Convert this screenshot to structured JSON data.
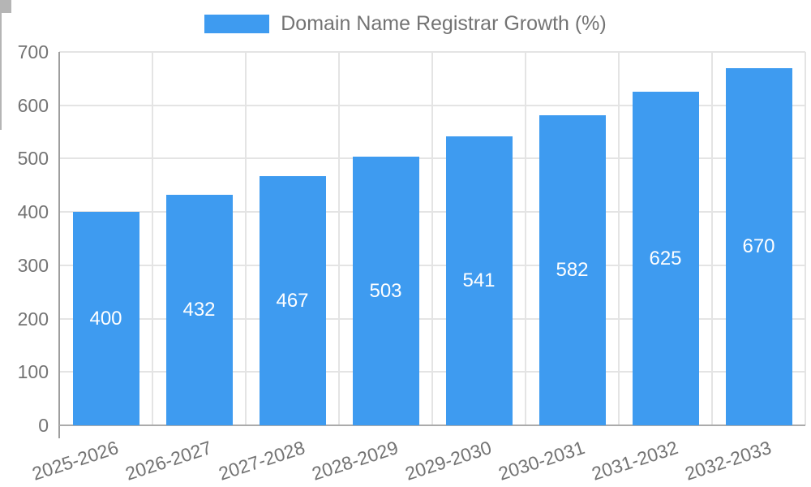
{
  "legend": {
    "title": "Domain Name Registrar Growth (%)",
    "swatch_icon": "legend-color-box"
  },
  "colors": {
    "bar": "#3E9BF0",
    "text": "#737373",
    "grid": "#E4E4E4",
    "axis": "#9E9E9E",
    "axis_x": "#ABABAB",
    "tick": "#B5B5B5",
    "value_label": "#FFFFFF",
    "background": "#FFFFFF"
  },
  "chart_data": {
    "type": "bar",
    "title": "Domain Name Registrar Growth (%)",
    "categories": [
      "2025-2026",
      "2026-2027",
      "2027-2028",
      "2028-2029",
      "2029-2030",
      "2030-2031",
      "2031-2032",
      "2032-2033"
    ],
    "series": [
      {
        "name": "Domain Name Registrar Growth (%)",
        "values": [
          400,
          432,
          467,
          503,
          541,
          582,
          625,
          670
        ]
      }
    ],
    "value_labels": {
      "visible": true,
      "position": "inside-center",
      "color": "#FFFFFF"
    },
    "xlabel": "",
    "ylabel": "",
    "ylim": [
      0,
      700
    ],
    "yticks": [
      0,
      100,
      200,
      300,
      400,
      500,
      600,
      700
    ],
    "x_label_rotation_deg": -18,
    "grid": true,
    "legend_position": "top-center"
  }
}
